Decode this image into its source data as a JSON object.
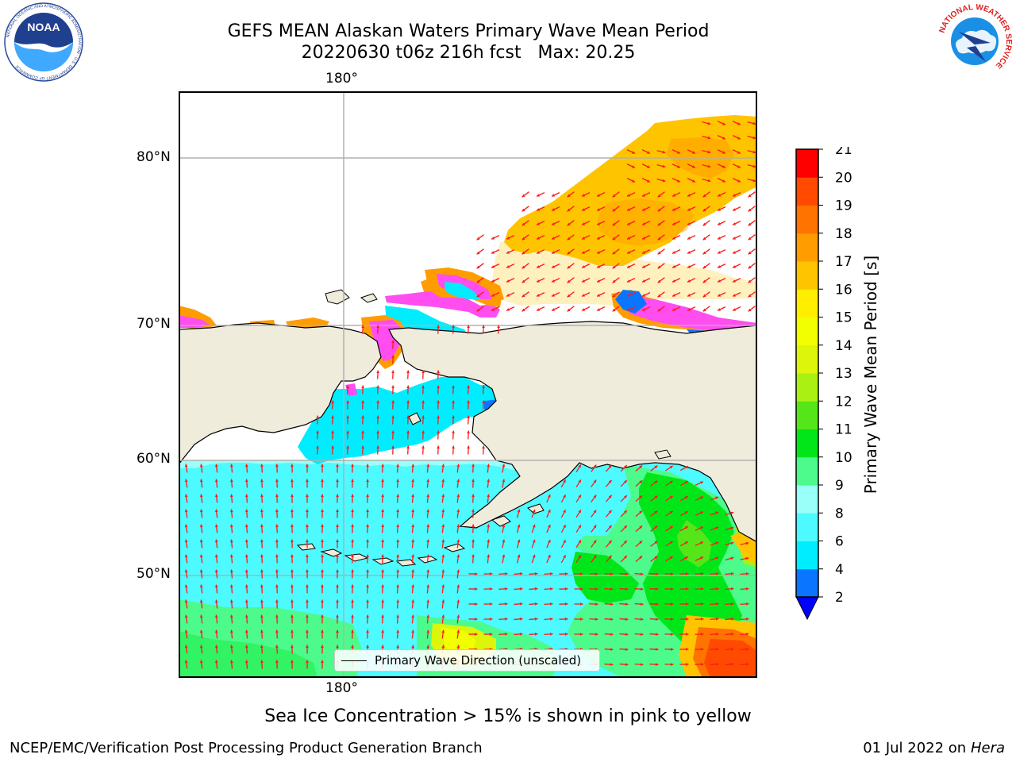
{
  "title": {
    "line1": "GEFS MEAN Alaskan Waters Primary Wave Mean Period",
    "line2": "20220630 t06z 216h fcst   Max: 20.25"
  },
  "logos": {
    "left": {
      "icon": "noaa-logo",
      "text": "NOAA",
      "ring_text": "NATIONAL OCEANIC AND ATMOSPHERIC ADMINISTRATION · U.S. DEPARTMENT OF COMMERCE"
    },
    "right": {
      "icon": "national-weather-service-logo",
      "ring_text": "NATIONAL WEATHER SERVICE"
    }
  },
  "map": {
    "top_label": "180°",
    "bottom_label": "180°",
    "lat_labels": [
      "80°N",
      "70°N",
      "60°N",
      "50°N"
    ],
    "colors": {
      "land": "#efecdc",
      "coast": "#000000",
      "grid": "#b0b0b0",
      "arrow": "#ff1a1a"
    }
  },
  "legend": {
    "label": "Primary Wave Direction (unscaled)"
  },
  "colorbar": {
    "title": "Primary Wave Mean Period [s]",
    "ticks": [
      "2",
      "4",
      "6",
      "8",
      "9",
      "10",
      "11",
      "12",
      "13",
      "14",
      "15",
      "16",
      "17",
      "18",
      "19",
      "20",
      "21"
    ],
    "colors": [
      "#0a75ff",
      "#00ecff",
      "#4dfaff",
      "#99fff8",
      "#4dfb8c",
      "#00e619",
      "#55e619",
      "#aaf013",
      "#dcf50a",
      "#f2ff00",
      "#ffee00",
      "#ffc400",
      "#ff9d00",
      "#ff7300",
      "#ff4a00",
      "#ff0000"
    ],
    "under_color": "#0000ff"
  },
  "note": "Sea Ice Concentration > 15% is shown in pink to yellow",
  "footer": {
    "left": "NCEP/EMC/Verification Post Processing Product Generation Branch",
    "right_prefix": "01 Jul 2022 on ",
    "right_host": "Hera"
  }
}
